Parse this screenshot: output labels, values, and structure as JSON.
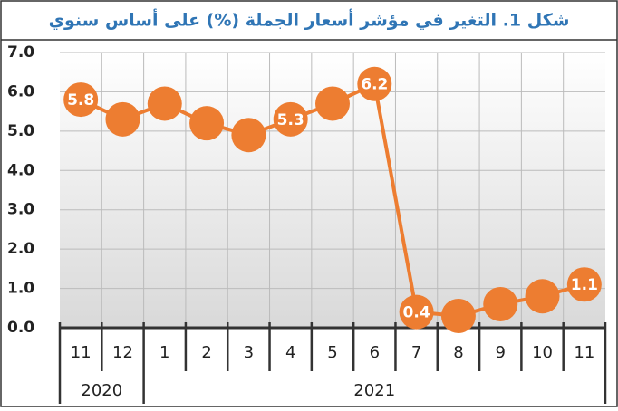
{
  "chart_data": {
    "type": "line",
    "title": "شكل 1. التغير في مؤشر أسعار الجملة (%) على أساس سنوي",
    "categories": [
      "11",
      "12",
      "1",
      "2",
      "3",
      "4",
      "5",
      "6",
      "7",
      "8",
      "9",
      "10",
      "11"
    ],
    "groups": [
      {
        "label": "2020",
        "count": 2
      },
      {
        "label": "2021",
        "count": 11
      }
    ],
    "series": [
      {
        "name": "التغير",
        "color": "#ed7d31",
        "values": [
          5.8,
          5.3,
          5.7,
          5.2,
          4.9,
          5.3,
          5.7,
          6.2,
          0.4,
          0.3,
          0.6,
          0.8,
          1.1
        ],
        "value_labels": [
          "5.8",
          null,
          null,
          null,
          null,
          "5.3",
          null,
          "6.2",
          "0.4",
          null,
          null,
          null,
          "1.1"
        ]
      }
    ],
    "ylim": [
      0,
      7
    ],
    "yticks": [
      {
        "value": 0,
        "label": "0.0"
      },
      {
        "value": 1,
        "label": "1.0"
      },
      {
        "value": 2,
        "label": "2.0"
      },
      {
        "value": 3,
        "label": "3.0"
      },
      {
        "value": 4,
        "label": "4.0"
      },
      {
        "value": 5,
        "label": "5.0"
      },
      {
        "value": 6,
        "label": "6.0"
      },
      {
        "value": 7,
        "label": "7.0"
      }
    ],
    "grid": true
  }
}
